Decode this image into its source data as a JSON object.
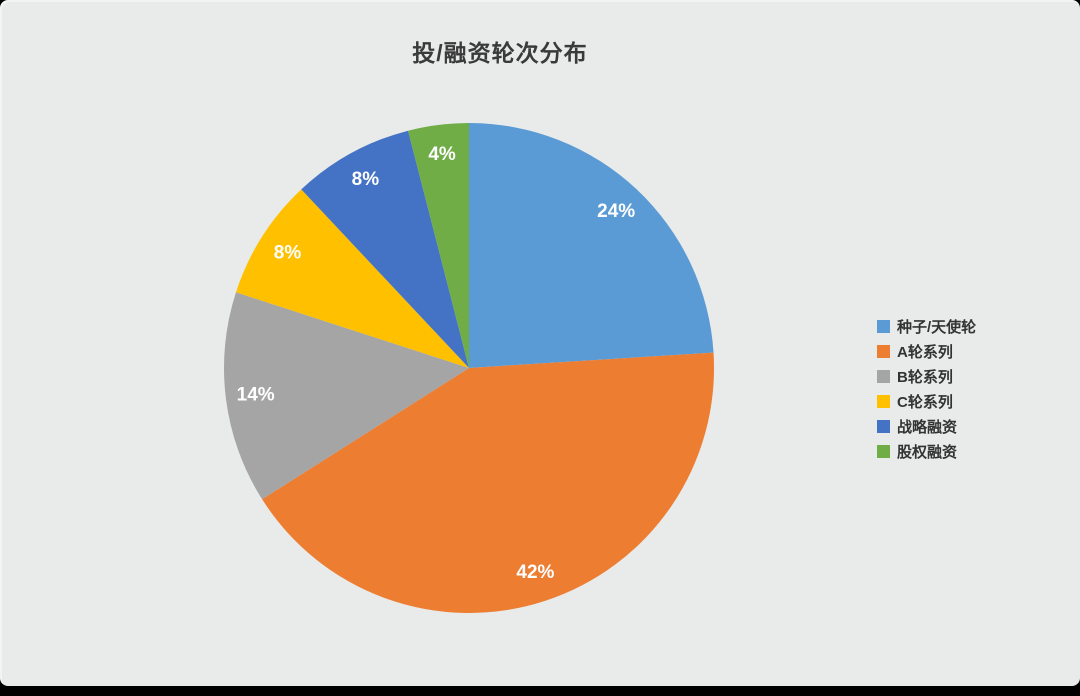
{
  "page": {
    "canvas_color": "#e9eaea",
    "frame_color": "#000000",
    "title_color": "#3a3a3a",
    "label_color": "#ffffff"
  },
  "chart_data": {
    "type": "pie",
    "title": "投/融资轮次分布",
    "label_format": "percent",
    "legend_position": "right",
    "start_angle_deg": 0,
    "direction": "clockwise",
    "series": [
      {
        "label": "种子/天使轮",
        "value": 24,
        "color": "#5B9BD5"
      },
      {
        "label": "A轮系列",
        "value": 42,
        "color": "#ED7D31"
      },
      {
        "label": "B轮系列",
        "value": 14,
        "color": "#A5A5A5"
      },
      {
        "label": "C轮系列",
        "value": 8,
        "color": "#FFC000"
      },
      {
        "label": "战略融资",
        "value": 8,
        "color": "#4472C4"
      },
      {
        "label": "股权融资",
        "value": 4,
        "color": "#70AD47"
      }
    ],
    "data_labels": [
      "24%",
      "42%",
      "14%",
      "8%",
      "8%",
      "4%"
    ]
  }
}
